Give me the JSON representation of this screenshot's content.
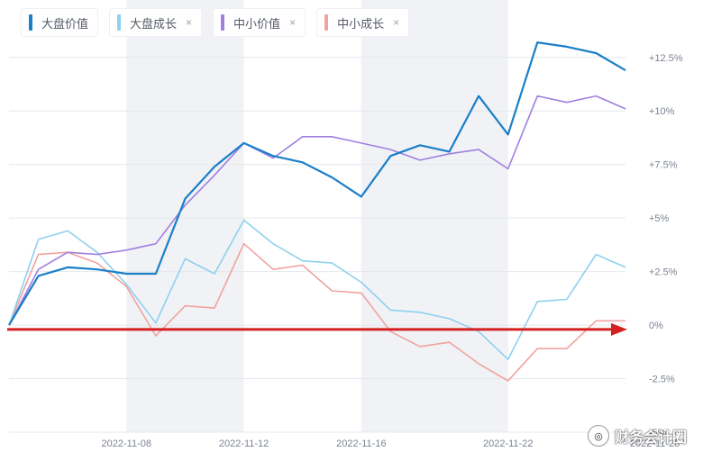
{
  "legend": {
    "items": [
      {
        "label": "大盘价值",
        "color": "#1a7fc8",
        "closable": false,
        "close_text": ""
      },
      {
        "label": "大盘成长",
        "color": "#8fd0ee",
        "closable": true,
        "close_text": "×"
      },
      {
        "label": "中小价值",
        "color": "#a07fe0",
        "closable": true,
        "close_text": "×"
      },
      {
        "label": "中小成长",
        "color": "#f0a3a0",
        "closable": true,
        "close_text": "×"
      }
    ]
  },
  "watermark": {
    "text": "财务会计圈",
    "icon": "wechat-icon",
    "icon_glyph": "◎"
  },
  "chart_data": {
    "type": "line",
    "x_tick_labels": [
      "2022-11-08",
      "2022-11-12",
      "2022-11-16",
      "2022-11-22",
      "2022-11-28"
    ],
    "x_tick_index": [
      4,
      8,
      12,
      17,
      22
    ],
    "y_tick_labels": [
      "+12.5%",
      "+10%",
      "+7.5%",
      "+5%",
      "+2.5%",
      "0%",
      "-2.5%",
      "-5%"
    ],
    "y_tick_values": [
      12.5,
      10,
      7.5,
      5,
      2.5,
      0,
      -2.5,
      -5
    ],
    "ylim": [
      -5,
      13.5
    ],
    "grid": true,
    "shaded_bands": [
      [
        4,
        8
      ],
      [
        12,
        17
      ],
      [
        22,
        26
      ]
    ],
    "reference_arrow": {
      "y": -0.2,
      "color": "#d42020"
    },
    "series": [
      {
        "name": "大盘价值",
        "color": "#1a7fc8",
        "values": [
          0,
          2.3,
          2.7,
          2.6,
          2.4,
          2.4,
          5.9,
          7.4,
          8.5,
          7.9,
          7.6,
          6.9,
          6.0,
          7.9,
          8.4,
          8.1,
          10.7,
          8.9,
          13.2,
          13.0,
          12.7,
          11.9
        ]
      },
      {
        "name": "大盘成长",
        "color": "#8fd0ee",
        "values": [
          0,
          4.0,
          4.4,
          3.4,
          1.9,
          0.1,
          3.1,
          2.4,
          4.9,
          3.8,
          3.0,
          2.9,
          2.0,
          0.7,
          0.6,
          0.3,
          -0.3,
          -1.6,
          1.1,
          1.2,
          3.3,
          2.7
        ]
      },
      {
        "name": "中小价值",
        "color": "#a07fe0",
        "values": [
          0,
          2.6,
          3.4,
          3.3,
          3.5,
          3.8,
          5.6,
          7.0,
          8.5,
          7.8,
          8.8,
          8.8,
          8.5,
          8.2,
          7.7,
          8.0,
          8.2,
          7.3,
          10.7,
          10.4,
          10.7,
          10.1
        ]
      },
      {
        "name": "中小成长",
        "color": "#f0a3a0",
        "values": [
          0,
          3.3,
          3.4,
          2.9,
          1.8,
          -0.5,
          0.9,
          0.8,
          3.8,
          2.6,
          2.8,
          1.6,
          1.5,
          -0.3,
          -1.0,
          -0.8,
          -1.8,
          -2.6,
          -1.1,
          -1.1,
          0.2,
          0.2
        ]
      }
    ]
  }
}
